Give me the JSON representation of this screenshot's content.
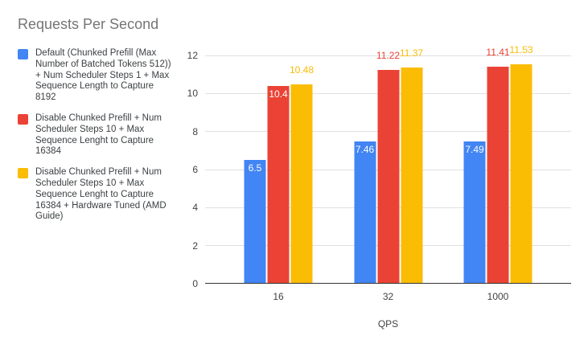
{
  "chart_data": {
    "type": "bar",
    "title": "Requests Per Second",
    "xlabel": "QPS",
    "ylabel": "",
    "categories": [
      "16",
      "32",
      "1000"
    ],
    "ylim": [
      0,
      12
    ],
    "yticks": [
      0,
      2,
      4,
      6,
      8,
      10,
      12
    ],
    "grid": true,
    "legend_position": "left",
    "series": [
      {
        "name": "Default (Chunked Prefill (Max Number of Batched Tokens 512)) + Num Scheduler Steps 1 + Max Sequence Length to Capture 8192",
        "color": "#4285F4",
        "values": [
          6.5,
          7.46,
          7.49
        ],
        "labels": [
          "6.5",
          "7.46",
          "7.49"
        ],
        "label_placement": [
          "inside",
          "inside",
          "inside"
        ]
      },
      {
        "name": "Disable Chunked Prefill + Num Scheduler Steps 10 + Max Sequence Lenght to Capture 16384",
        "color": "#EA4335",
        "values": [
          10.4,
          11.22,
          11.41
        ],
        "labels": [
          "10.4",
          "11.22",
          "11.41"
        ],
        "label_placement": [
          "inside",
          "above",
          "above"
        ]
      },
      {
        "name": "Disable Chunked Prefill + Num Scheduler Steps 10 + Max Sequence Lenght to Capture 16384 + Hardware Tuned (AMD Guide)",
        "color": "#FBBC04",
        "values": [
          10.48,
          11.37,
          11.53
        ],
        "labels": [
          "10.48",
          "11.37",
          "11.53"
        ],
        "label_placement": [
          "above",
          "above",
          "above"
        ]
      }
    ]
  },
  "colors": {
    "background": "#FFFFFF",
    "title_text": "#757575",
    "legend_text": "#3C4043",
    "axis_text": "#424242",
    "gridline": "#E0E0E0",
    "axis_line": "#333333",
    "inside_label_text": "#FFFFFF"
  }
}
